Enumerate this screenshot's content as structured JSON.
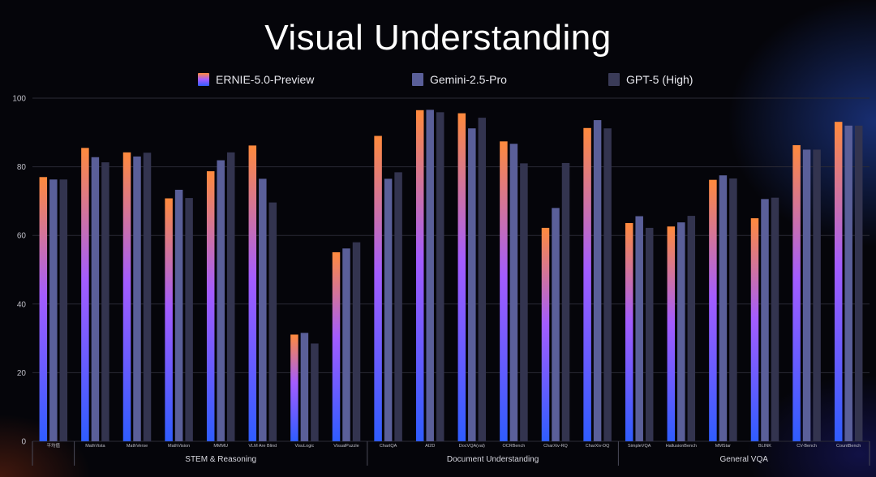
{
  "title": "Visual Understanding",
  "colors": {
    "ernie_top": "#ff8a3d",
    "ernie_mid": "#a35cff",
    "ernie_bottom": "#2f5cff",
    "gemini": "#5a5f99",
    "gpt": "#33344f",
    "grid": "#2a2a35",
    "axis_text": "#bfbfc8"
  },
  "chart_data": {
    "type": "bar",
    "title": "Visual Understanding",
    "ylim": [
      0,
      100
    ],
    "yticks": [
      0,
      20,
      40,
      60,
      80,
      100
    ],
    "legend_position": "top-center",
    "grid": true,
    "categories": [
      "平均值",
      "MathVista",
      "MathVerse",
      "MathVision",
      "MMMU",
      "VLM Are Blind",
      "VisuLogic",
      "VisualPuzzle",
      "ChartQA",
      "AI2D",
      "DocVQA(val)",
      "OCRBench",
      "CharXiv-RQ",
      "CharXiv-DQ",
      "SimpleVQA",
      "HallusionBench",
      "MMStar",
      "BLINK",
      "CV-Bench",
      "CountBench"
    ],
    "groups": [
      {
        "label": "",
        "start": 0,
        "end": 0
      },
      {
        "label": "STEM & Reasoning",
        "start": 1,
        "end": 7
      },
      {
        "label": "Document Understanding",
        "start": 8,
        "end": 13
      },
      {
        "label": "General VQA",
        "start": 14,
        "end": 19
      }
    ],
    "series": [
      {
        "name": "ERNIE-5.0-Preview",
        "values": [
          77.0,
          85.5,
          84.2,
          70.8,
          78.7,
          86.2,
          31.1,
          55.1,
          89.0,
          96.5,
          95.6,
          87.4,
          62.2,
          91.3,
          63.6,
          62.6,
          76.2,
          65.0,
          86.3,
          93.1
        ]
      },
      {
        "name": "Gemini-2.5-Pro",
        "values": [
          76.3,
          82.8,
          83.0,
          73.3,
          81.9,
          76.5,
          31.6,
          56.2,
          76.5,
          96.6,
          91.2,
          86.7,
          68.0,
          93.6,
          65.6,
          63.8,
          77.5,
          70.6,
          85.0,
          92.0
        ]
      },
      {
        "name": "GPT-5 (High)",
        "values": [
          76.3,
          81.3,
          84.1,
          70.9,
          84.2,
          69.6,
          28.5,
          58.0,
          78.4,
          95.9,
          94.3,
          81.0,
          81.1,
          91.2,
          62.2,
          65.7,
          76.6,
          71.0,
          85.0,
          92.0
        ]
      }
    ]
  }
}
